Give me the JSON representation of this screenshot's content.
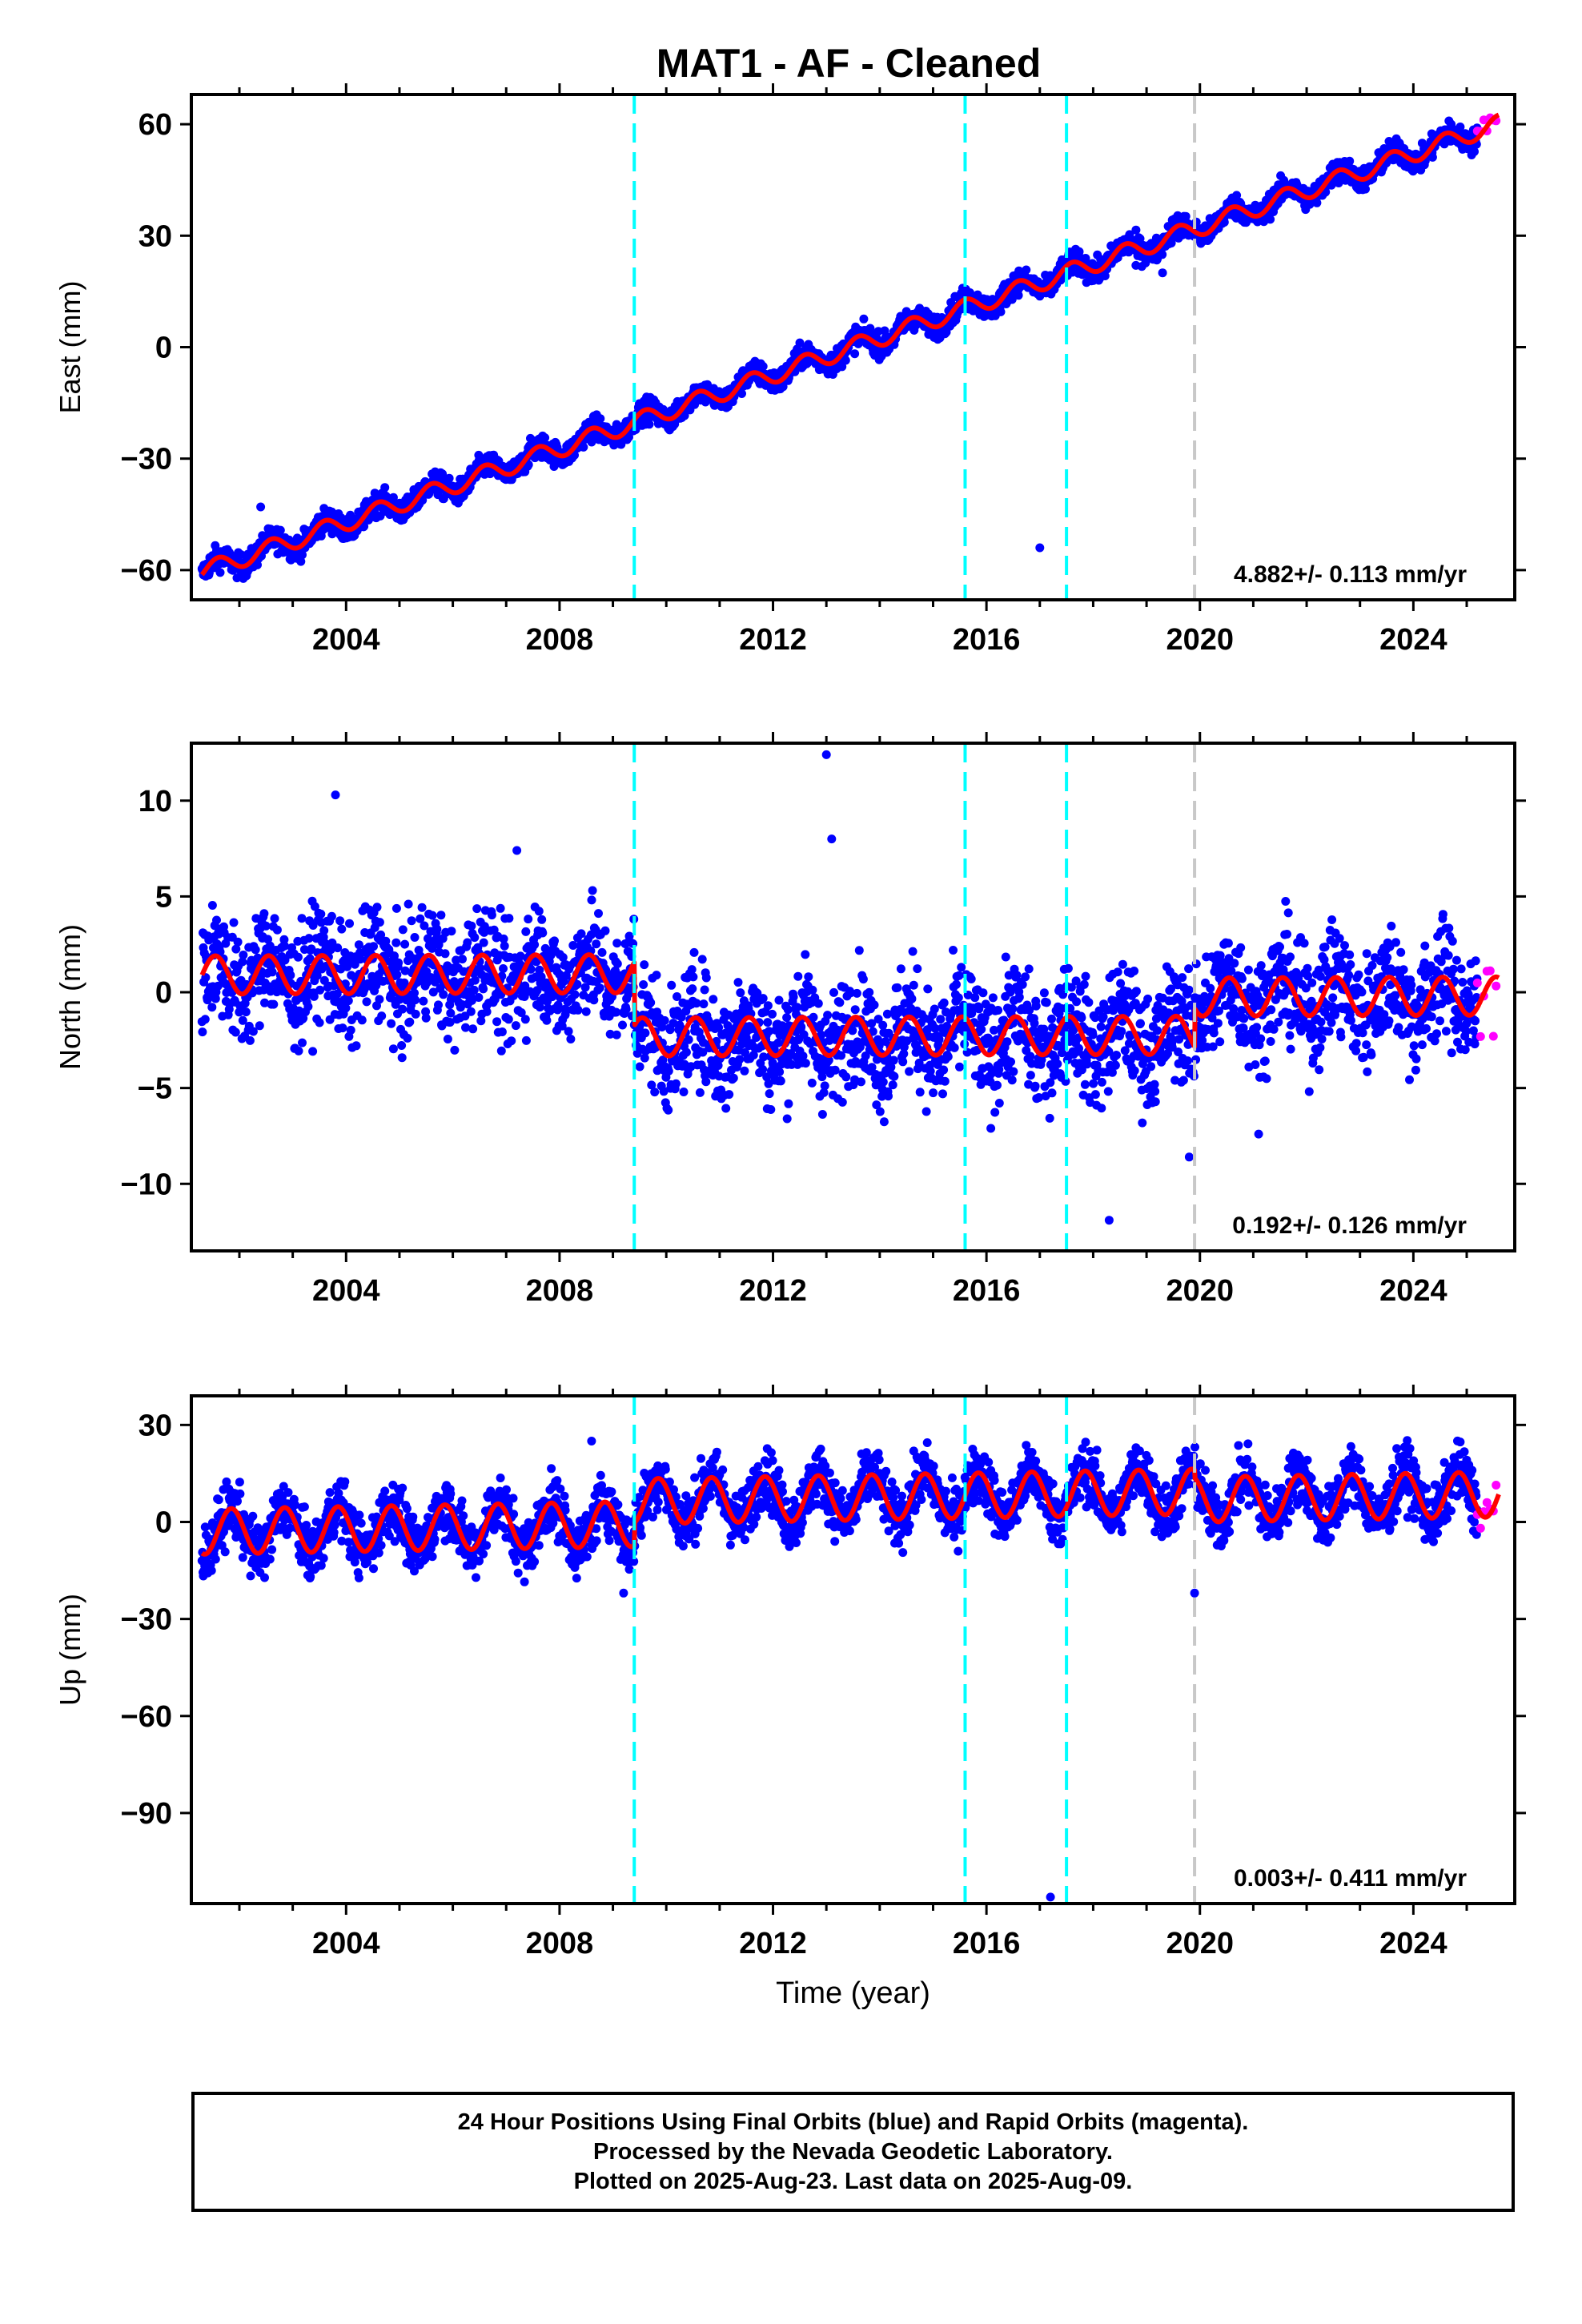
{
  "title": "MAT1  - AF - Cleaned",
  "footer": {
    "line1": "24 Hour Positions Using Final Orbits (blue) and Rapid Orbits (magenta).",
    "line2": "Processed by the Nevada Geodetic Laboratory.",
    "line3": "Plotted on 2025-Aug-23. Last data on 2025-Aug-09."
  },
  "colors": {
    "final_orbits": "#0000ff",
    "rapid_orbits": "#ff00ff",
    "model_fit": "#ff0000",
    "event_line": "#00ffff",
    "equipment_line": "#c8c8c8"
  },
  "chart_data": [
    {
      "type": "scatter",
      "ylabel": "East (mm)",
      "xlabel": "",
      "xlim": [
        2001.1,
        2025.9
      ],
      "ylim": [
        -68,
        68
      ],
      "yticks": [
        -60,
        -30,
        0,
        30,
        60
      ],
      "xticks": [
        2004,
        2008,
        2012,
        2016,
        2020,
        2024
      ],
      "grid": false,
      "velocity_label": "4.882+/- 0.113 mm/yr",
      "event_lines": [
        2009.4,
        2015.6,
        2017.5
      ],
      "equipment_lines": [
        2019.9
      ],
      "data_start": 2001.3,
      "data_end": 2025.2,
      "rapid_start": 2025.2,
      "rapid_end": 2025.6,
      "model": {
        "trend_points": [
          [
            2001.3,
            -60.5
          ],
          [
            2025.5,
            59.6
          ]
        ],
        "annual_amplitude": 2.4,
        "annual_phase_year": 0.35,
        "offsets": []
      },
      "scatter_noise_mm": 1.6,
      "outliers": [
        [
          2002.4,
          -43
        ],
        [
          2017.0,
          -54
        ],
        [
          2018.8,
          22
        ],
        [
          2019.3,
          20
        ]
      ]
    },
    {
      "type": "scatter",
      "ylabel": "North (mm)",
      "xlabel": "",
      "xlim": [
        2001.1,
        2025.9
      ],
      "ylim": [
        -13.5,
        13
      ],
      "yticks": [
        -10,
        -5,
        0,
        5,
        10
      ],
      "xticks": [
        2004,
        2008,
        2012,
        2016,
        2020,
        2024
      ],
      "grid": false,
      "velocity_label": "0.192+/- 0.126 mm/yr",
      "event_lines": [
        2009.4,
        2015.6,
        2017.5
      ],
      "equipment_lines": [
        2019.9
      ],
      "data_start": 2001.3,
      "data_end": 2025.2,
      "rapid_start": 2025.2,
      "rapid_end": 2025.6,
      "model": {
        "trend_points": [
          [
            2001.3,
            0.9
          ],
          [
            2025.5,
            1.1
          ]
        ],
        "annual_amplitude": 1.0,
        "annual_phase_year": 0.3,
        "offsets": [
          [
            2009.4,
            -3.3
          ],
          [
            2019.9,
            2.0
          ]
        ]
      },
      "scatter_noise_mm": 1.5,
      "outliers": [
        [
          2003.8,
          10.3
        ],
        [
          2013.0,
          12.4
        ],
        [
          2018.3,
          -11.9
        ],
        [
          2019.8,
          -8.6
        ],
        [
          2021.1,
          -7.4
        ],
        [
          2013.1,
          8.0
        ],
        [
          2007.2,
          7.4
        ]
      ]
    },
    {
      "type": "scatter",
      "ylabel": "Up (mm)",
      "xlabel": "Time (year)",
      "xlim": [
        2001.1,
        2025.9
      ],
      "ylim": [
        -118,
        39
      ],
      "yticks": [
        -90,
        -60,
        -30,
        0,
        30
      ],
      "xticks": [
        2004,
        2008,
        2012,
        2016,
        2020,
        2024
      ],
      "grid": false,
      "velocity_label": "0.003+/- 0.411 mm/yr",
      "event_lines": [
        2009.4,
        2015.6,
        2017.5
      ],
      "equipment_lines": [
        2019.9
      ],
      "data_start": 2001.3,
      "data_end": 2025.2,
      "rapid_start": 2025.2,
      "rapid_end": 2025.6,
      "model": {
        "trend_points": [
          [
            2001.3,
            -3
          ],
          [
            2025.5,
            4
          ]
        ],
        "annual_amplitude": 7.0,
        "annual_phase_year": 0.6,
        "offsets": [
          [
            2009.4,
            7.0
          ],
          [
            2019.9,
            -2.5
          ]
        ]
      },
      "scatter_noise_mm": 4.5,
      "outliers": [
        [
          2017.2,
          -116
        ],
        [
          2019.9,
          -22
        ],
        [
          2008.6,
          25
        ],
        [
          2009.2,
          -22
        ]
      ]
    }
  ]
}
